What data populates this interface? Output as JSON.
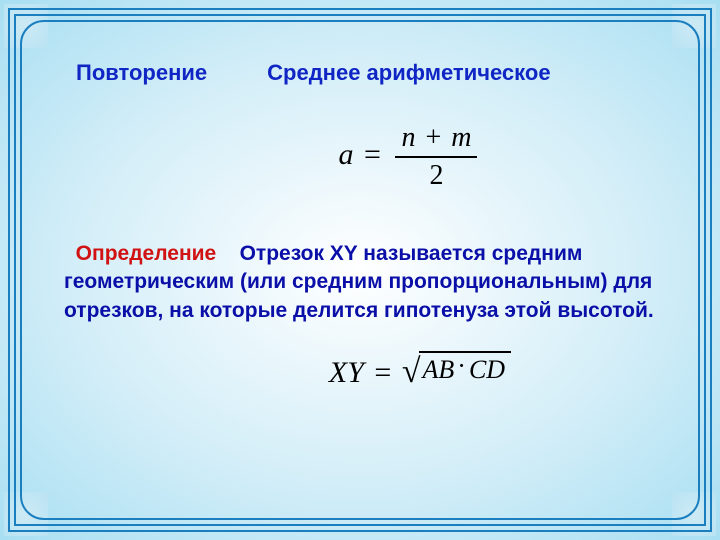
{
  "frame": {
    "border_color": "#1b7fbf",
    "bg_gradient_inner": "#ffffff",
    "bg_gradient_outer": "#a8dff2",
    "corner_radius": 24
  },
  "header": {
    "left": "Повторение",
    "right": "Среднее арифметическое",
    "color": "#1026c4",
    "fontsize": 22
  },
  "formula_mean": {
    "lhs": "a",
    "eq": "=",
    "numerator_left": "n",
    "plus": "+",
    "numerator_right": "m",
    "denominator": "2",
    "color": "#000000",
    "fontsize": 30
  },
  "definition": {
    "label": "Определение",
    "text": "Отрезок XY называется средним геометрическим (или средним пропорциональным) для отрезков, на которые делится гипотенуза этой высотой.",
    "label_color": "#d11212",
    "text_color": "#0a0fa8",
    "fontsize": 21
  },
  "formula_geom": {
    "lhs": "XY",
    "eq": "=",
    "rad_left": "AB",
    "dot": "·",
    "rad_right": "CD",
    "color": "#000000",
    "fontsize": 28
  }
}
